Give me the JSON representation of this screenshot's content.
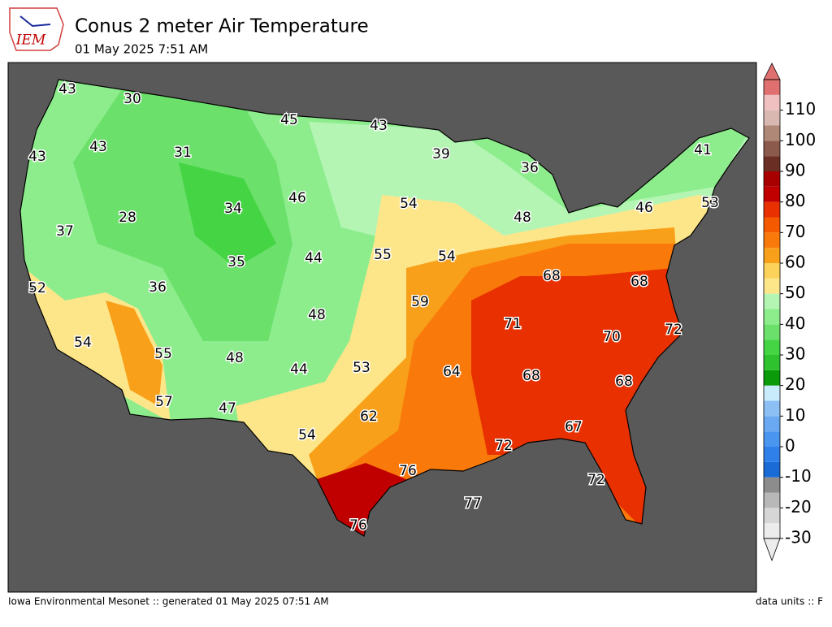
{
  "header": {
    "title": "Conus 2 meter Air Temperature",
    "subtitle": "01 May 2025 7:51 AM",
    "logo": "IEM"
  },
  "map": {
    "labels": [
      43,
      30,
      45,
      43,
      43,
      43,
      31,
      39,
      36,
      41,
      46,
      54,
      34,
      28,
      48,
      46,
      53,
      37,
      55,
      54,
      44,
      35,
      68,
      68,
      52,
      36,
      59,
      48,
      71,
      70,
      72,
      54,
      55,
      48,
      44,
      53,
      64,
      68,
      68,
      57,
      47,
      62,
      67,
      72,
      54,
      76,
      72,
      77,
      76
    ]
  },
  "colorbar": {
    "lim": [
      -30,
      120
    ],
    "step": 5,
    "ticks": [
      -30,
      -20,
      -10,
      0,
      10,
      20,
      30,
      40,
      50,
      60,
      70,
      80,
      90,
      100,
      110
    ],
    "colors": [
      "#ececec",
      "#d6d6d6",
      "#b8b8b8",
      "#8c8c8c",
      "#1a6bd6",
      "#2f80e8",
      "#4a95f0",
      "#6aa9f2",
      "#8cc0f5",
      "#c8ecfc",
      "#0a9a0a",
      "#2fc22f",
      "#44d444",
      "#6be06b",
      "#8ded8d",
      "#b4f5b4",
      "#fde68a",
      "#fcd25a",
      "#f9a01a",
      "#f97a0a",
      "#f55a00",
      "#e83000",
      "#c00000",
      "#a80000",
      "#6b2e25",
      "#8b5a4c",
      "#b08878",
      "#d8b8b0",
      "#f0c0c0",
      "#e07070"
    ]
  },
  "footer": {
    "left": "Iowa Environmental Mesonet :: generated 01 May 2025 07:51 AM",
    "right": "data units :: F"
  }
}
